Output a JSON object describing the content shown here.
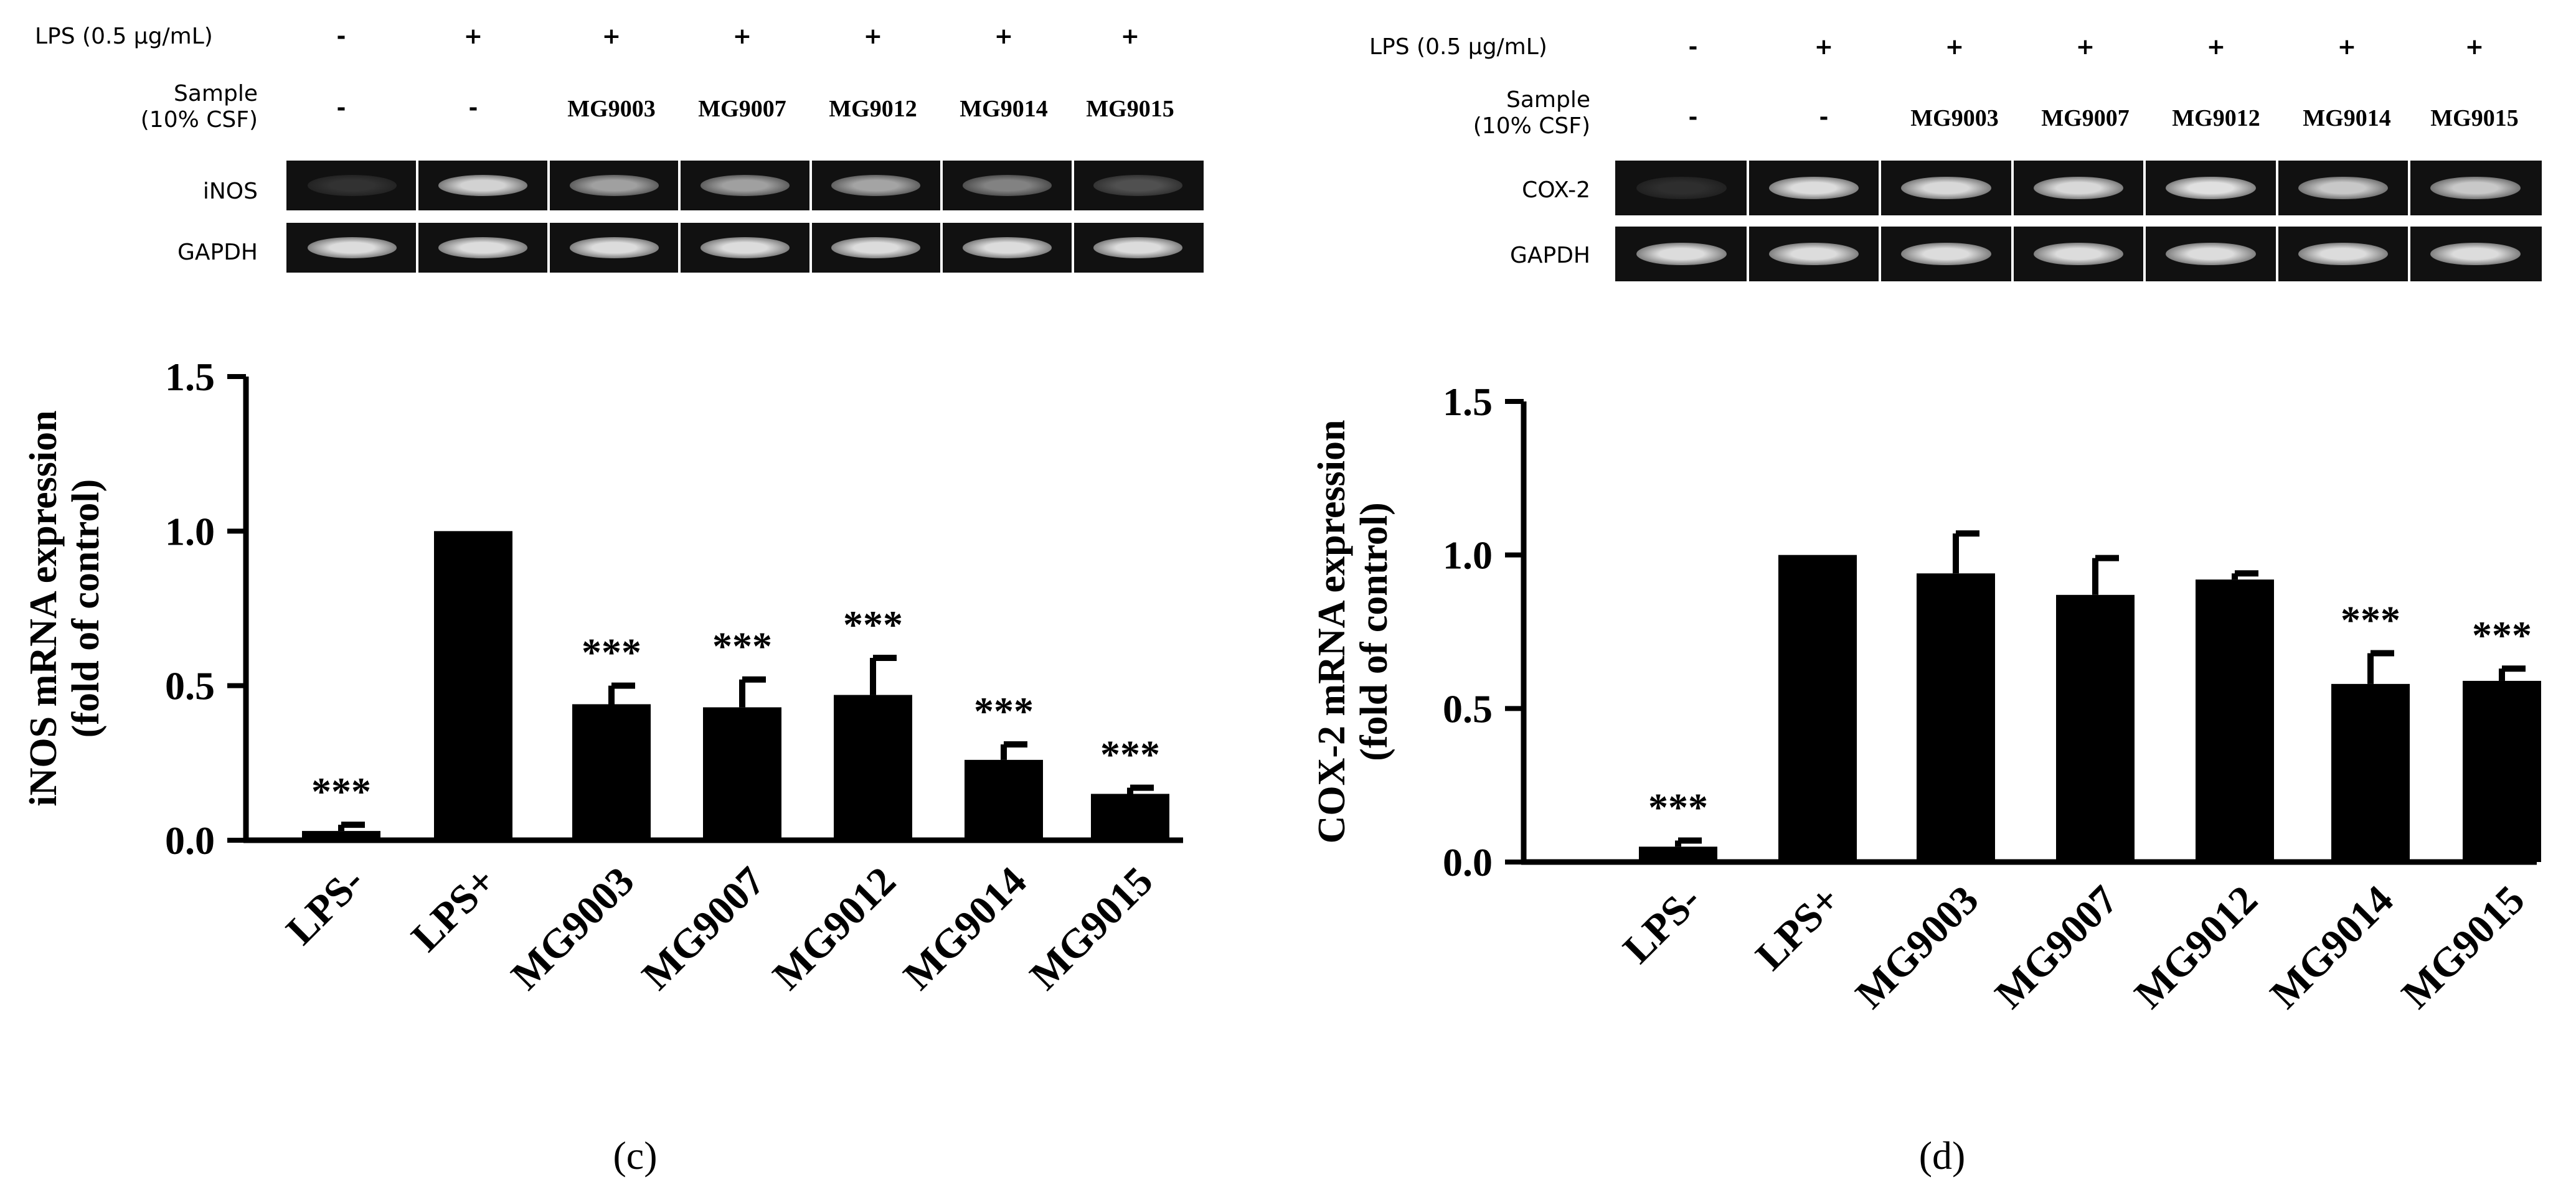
{
  "panels": [
    {
      "id": "c",
      "label": "(c)",
      "lps_label": "LPS (0.5 µg/mL)",
      "sample_label_line1": "Sample",
      "sample_label_line2": "(10% CSF)",
      "lps_marks": [
        "-",
        "+",
        "+",
        "+",
        "+",
        "+",
        "+"
      ],
      "sample_marks": [
        "-",
        "-",
        "MG9003",
        "MG9007",
        "MG9012",
        "MG9014",
        "MG9015"
      ],
      "gels": [
        {
          "name": "iNOS",
          "intensity": [
            0.05,
            0.85,
            0.6,
            0.6,
            0.62,
            0.45,
            0.2
          ]
        },
        {
          "name": "GAPDH",
          "intensity": [
            0.9,
            0.9,
            0.9,
            0.9,
            0.9,
            0.9,
            0.9
          ]
        }
      ]
    },
    {
      "id": "d",
      "label": "(d)",
      "lps_label": "LPS (0.5 µg/mL)",
      "sample_label_line1": "Sample",
      "sample_label_line2": "(10% CSF)",
      "lps_marks": [
        "-",
        "+",
        "+",
        "+",
        "+",
        "+",
        "+"
      ],
      "sample_marks": [
        "-",
        "-",
        "MG9003",
        "MG9007",
        "MG9012",
        "MG9014",
        "MG9015"
      ],
      "gels": [
        {
          "name": "COX-2",
          "intensity": [
            0.03,
            0.9,
            0.88,
            0.88,
            0.92,
            0.8,
            0.8
          ]
        },
        {
          "name": "GAPDH",
          "intensity": [
            0.9,
            0.9,
            0.9,
            0.9,
            0.9,
            0.9,
            0.9
          ]
        }
      ]
    }
  ],
  "chart_data": [
    {
      "type": "bar",
      "categories": [
        "LPS-",
        "LPS+",
        "MG9003",
        "MG9007",
        "MG9012",
        "MG9014",
        "MG9015"
      ],
      "values": [
        0.03,
        1.0,
        0.44,
        0.43,
        0.47,
        0.26,
        0.15
      ],
      "errors": [
        0.02,
        0.0,
        0.06,
        0.09,
        0.12,
        0.05,
        0.02
      ],
      "annotations": [
        "***",
        "",
        "***",
        "***",
        "***",
        "***",
        "***"
      ],
      "ylabel_line1": "iNOS mRNA expression",
      "ylabel_line2": "(fold of control)",
      "yticks": [
        "0.0",
        "0.5",
        "1.0",
        "1.5"
      ],
      "ylim": [
        0,
        1.5
      ],
      "color": "#000000"
    },
    {
      "type": "bar",
      "categories": [
        "LPS-",
        "LPS+",
        "MG9003",
        "MG9007",
        "MG9012",
        "MG9014",
        "MG9015"
      ],
      "values": [
        0.05,
        1.0,
        0.94,
        0.87,
        0.92,
        0.58,
        0.59
      ],
      "errors": [
        0.02,
        0.0,
        0.13,
        0.12,
        0.02,
        0.1,
        0.04
      ],
      "annotations": [
        "***",
        "",
        "",
        "",
        "",
        "***",
        "***"
      ],
      "ylabel_line1": "COX-2 mRNA expression",
      "ylabel_line2": "(fold of control)",
      "yticks": [
        "0.0",
        "0.5",
        "1.0",
        "1.5"
      ],
      "ylim": [
        0,
        1.5
      ],
      "color": "#000000"
    }
  ]
}
